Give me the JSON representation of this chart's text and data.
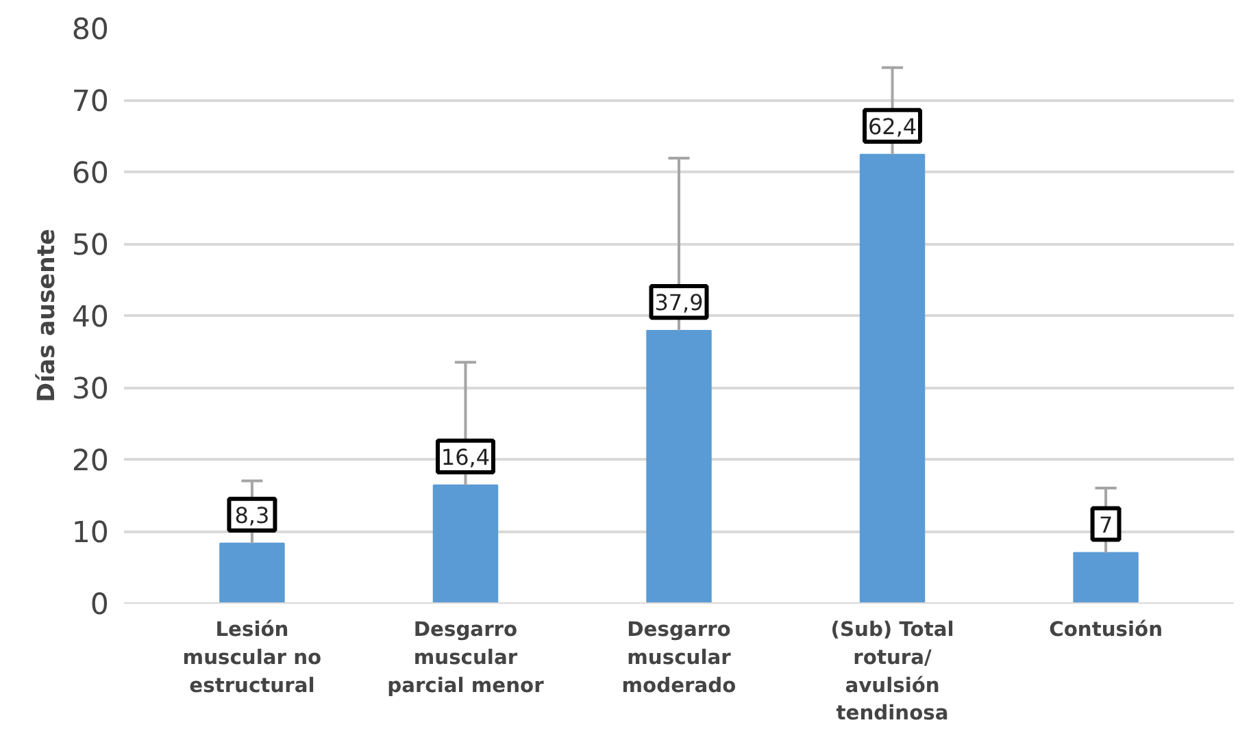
{
  "chart_data": {
    "type": "bar",
    "ylabel": "Días ausente",
    "categories": [
      "Lesión\nmuscular no\nestructural",
      "Desgarro\nmuscular\nparcial menor",
      "Desgarro\nmuscular\nmoderado",
      "(Sub) Total\nrotura/\navulsión\ntendinosa",
      "Contusión"
    ],
    "values": [
      8.3,
      16.4,
      37.9,
      62.4,
      7
    ],
    "value_labels": [
      "8,3",
      "16,4",
      "37,9",
      "62,4",
      "7"
    ],
    "errors": [
      [
        8.3,
        17.0
      ],
      [
        16.4,
        33.5
      ],
      [
        37.9,
        61.9
      ],
      [
        62.4,
        74.5
      ],
      [
        7,
        16.0
      ]
    ],
    "color": "#5b9bd5",
    "ylim": [
      0,
      80
    ],
    "yticks": [
      0,
      10,
      20,
      30,
      40,
      50,
      60,
      70,
      80
    ],
    "grid": "y"
  }
}
